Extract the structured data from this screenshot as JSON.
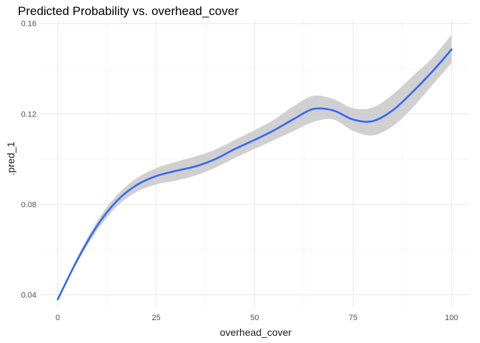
{
  "chart_data": {
    "type": "line",
    "title": "Predicted Probability vs. overhead_cover",
    "xlabel": "overhead_cover",
    "ylabel": ".pred_1",
    "xlim": [
      -4.5,
      104.5
    ],
    "ylim": [
      0.0345,
      0.1615
    ],
    "x_ticks": [
      0,
      25,
      50,
      75,
      100
    ],
    "x_tick_labels": [
      "0",
      "25",
      "50",
      "75",
      "100"
    ],
    "y_ticks": [
      0.04,
      0.08,
      0.12,
      0.16
    ],
    "y_tick_labels": [
      "0.04",
      "0.08",
      "0.12",
      "0.16"
    ],
    "grid": true,
    "legend": "none",
    "colors": {
      "line": "#3366ff",
      "ribbon": "#c8c8c8",
      "grid_major": "#ebebeb",
      "grid_minor": "#f5f5f5"
    },
    "series": [
      {
        "x": [
          0,
          5,
          10,
          15,
          20,
          25,
          30,
          35,
          40,
          45,
          50,
          55,
          60,
          65,
          70,
          75,
          80,
          85,
          90,
          95,
          100
        ],
        "y": [
          0.038,
          0.0555,
          0.0705,
          0.0815,
          0.0885,
          0.0925,
          0.0948,
          0.0968,
          0.1,
          0.1045,
          0.1085,
          0.1128,
          0.1178,
          0.1222,
          0.1215,
          0.1175,
          0.1168,
          0.1215,
          0.1295,
          0.1385,
          0.1485
        ],
        "lower": [
          0.038,
          0.0545,
          0.0685,
          0.079,
          0.0855,
          0.0888,
          0.0905,
          0.0928,
          0.0962,
          0.1005,
          0.1045,
          0.1085,
          0.1125,
          0.1165,
          0.1175,
          0.1125,
          0.1105,
          0.1145,
          0.1225,
          0.1325,
          0.1425
        ],
        "upper": [
          0.038,
          0.0568,
          0.0725,
          0.084,
          0.0915,
          0.096,
          0.0988,
          0.1012,
          0.1042,
          0.1085,
          0.1128,
          0.1175,
          0.1235,
          0.128,
          0.1265,
          0.1225,
          0.1228,
          0.1285,
          0.1365,
          0.1445,
          0.155
        ]
      }
    ]
  }
}
